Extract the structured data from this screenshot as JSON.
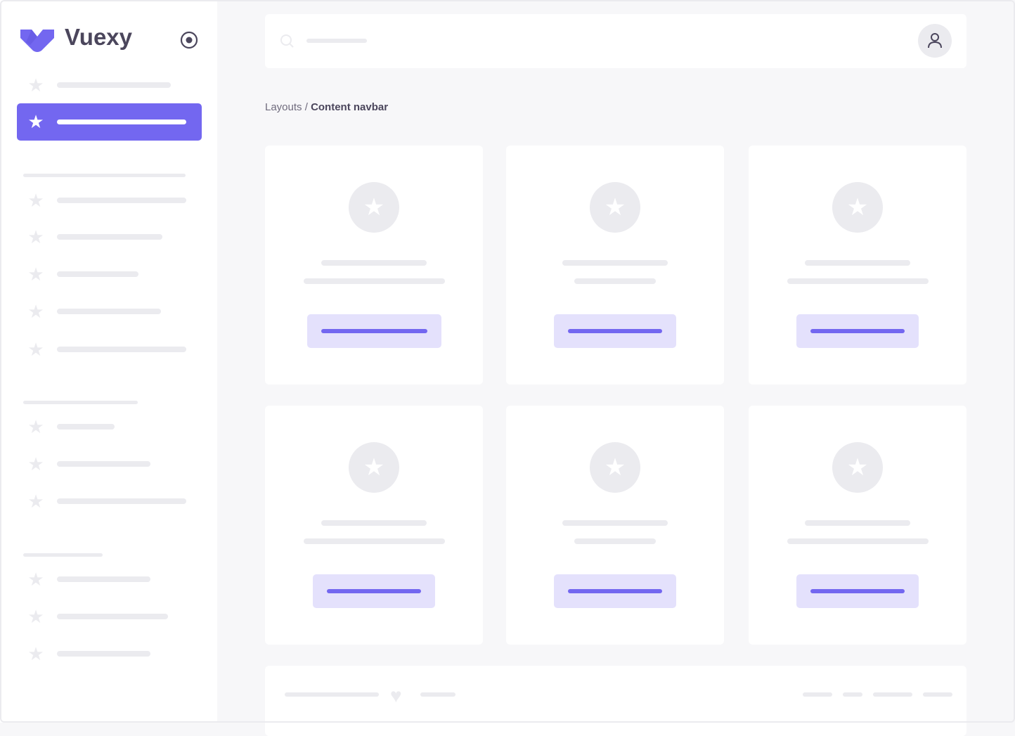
{
  "brand": {
    "name": "Vuexy",
    "logo_icon": "vuexy-logo-icon",
    "toggle_icon": "radio-circle-icon"
  },
  "colors": {
    "primary": "#7367f0",
    "primary_light": "#e4e1fc",
    "skeleton": "#ebebef",
    "background": "#f7f7f9",
    "text": "#4b465c"
  },
  "breadcrumb": {
    "parent": "Layouts",
    "separator": " / ",
    "current": "Content navbar"
  },
  "header": {
    "search_icon": "search-icon",
    "user_icon": "user-icon"
  },
  "footer": {
    "heart_icon": "heart-icon"
  }
}
